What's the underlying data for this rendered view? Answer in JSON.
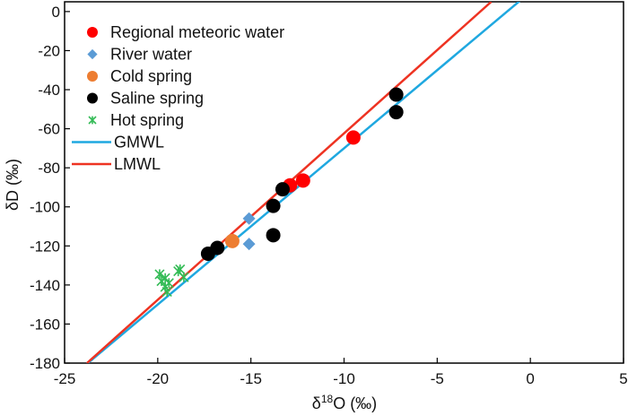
{
  "chart_data": {
    "type": "scatter",
    "xlabel": "δ18O (‰)",
    "xlabel_base": "δ",
    "xlabel_sup": "18",
    "xlabel_tail": "O (‰)",
    "ylabel": "δD (‰)",
    "xlim": [
      -25,
      5
    ],
    "ylim": [
      -180,
      5
    ],
    "x_ticks": [
      -25,
      -20,
      -15,
      -10,
      -5,
      0,
      5
    ],
    "y_ticks": [
      0,
      -20,
      -40,
      -60,
      -80,
      -100,
      -120,
      -140,
      -160,
      -180
    ],
    "legend_position": "top-left",
    "series": [
      {
        "name": "Regional meteoric water",
        "marker": "circle",
        "color": "#ff0000",
        "points": [
          [
            -9.5,
            -64.5
          ],
          [
            -12.2,
            -86.5
          ],
          [
            -12.9,
            -89
          ]
        ]
      },
      {
        "name": "River water",
        "marker": "diamond",
        "color": "#5b9bd5",
        "points": [
          [
            -15.1,
            -106
          ],
          [
            -15.1,
            -119
          ]
        ]
      },
      {
        "name": "Cold spring",
        "marker": "circle",
        "color": "#ed7d31",
        "points": [
          [
            -16.0,
            -117.5
          ]
        ]
      },
      {
        "name": "Saline spring",
        "marker": "circle",
        "color": "#000000",
        "points": [
          [
            -7.2,
            -42.5
          ],
          [
            -7.2,
            -51.5
          ],
          [
            -13.3,
            -91
          ],
          [
            -13.8,
            -99.5
          ],
          [
            -13.8,
            -114.5
          ],
          [
            -16.8,
            -121
          ],
          [
            -17.3,
            -124
          ]
        ]
      },
      {
        "name": "Hot spring",
        "marker": "asterisk",
        "color": "#33bb55",
        "points": [
          [
            -19.9,
            -134.5
          ],
          [
            -19.8,
            -138
          ],
          [
            -19.6,
            -136.5
          ],
          [
            -19.6,
            -141
          ],
          [
            -19.5,
            -143.5
          ],
          [
            -19.4,
            -139
          ],
          [
            -18.9,
            -133
          ],
          [
            -18.8,
            -132
          ],
          [
            -18.6,
            -136
          ]
        ]
      },
      {
        "name": "GMWL",
        "marker": "line",
        "color": "#1fa8e0",
        "equation": {
          "slope": 8,
          "intercept": 10
        }
      },
      {
        "name": "LMWL",
        "marker": "line",
        "color": "#ee3322",
        "endpoints": [
          [
            -23.8,
            -180
          ],
          [
            -2.1,
            5
          ]
        ]
      }
    ]
  }
}
